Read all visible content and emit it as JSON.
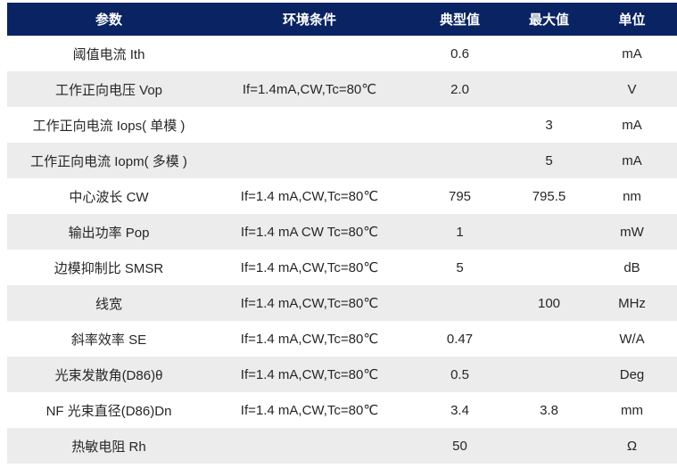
{
  "colors": {
    "page_bg": "#ffffff",
    "header_bg": "#0a2362",
    "header_text": "#ffffff",
    "row_bg": "#ffffff",
    "row_alt_bg": "#ececec",
    "body_text": "#262626"
  },
  "table": {
    "headers": [
      "参数",
      "环境条件",
      "典型值",
      "最大值",
      "单位"
    ],
    "rows": [
      {
        "param": "阈值电流 Ith",
        "condition": "",
        "typical": "0.6",
        "max": "",
        "unit": "mA"
      },
      {
        "param": "工作正向电压 Vop",
        "condition": "If=1.4mA,CW,Tc=80℃",
        "typical": "2.0",
        "max": "",
        "unit": "V"
      },
      {
        "param": "工作正向电流 Iops( 单模 )",
        "condition": "",
        "typical": "",
        "max": "3",
        "unit": "mA"
      },
      {
        "param": "工作正向电流 Iopm( 多模 )",
        "condition": "",
        "typical": "",
        "max": "5",
        "unit": "mA"
      },
      {
        "param": "中心波长 CW",
        "condition": "If=1.4 mA,CW,Tc=80℃",
        "typical": "795",
        "max": "795.5",
        "unit": "nm"
      },
      {
        "param": "输出功率 Pop",
        "condition": "If=1.4 mA CW Tc=80℃",
        "typical": "1",
        "max": "",
        "unit": "mW"
      },
      {
        "param": "边模抑制比 SMSR",
        "condition": "If=1.4 mA,CW,Tc=80℃",
        "typical": "5",
        "max": "",
        "unit": "dB"
      },
      {
        "param": "线宽",
        "condition": "If=1.4 mA,CW,Tc=80℃",
        "typical": "",
        "max": "100",
        "unit": "MHz"
      },
      {
        "param": "斜率效率 SE",
        "condition": "If=1.4 mA,CW,Tc=80℃",
        "typical": "0.47",
        "max": "",
        "unit": "W/A"
      },
      {
        "param": "光束发散角(D86)θ",
        "condition": "If=1.4 mA,CW,Tc=80℃",
        "typical": "0.5",
        "max": "",
        "unit": "Deg"
      },
      {
        "param": "NF 光束直径(D86)Dn",
        "condition": "If=1.4 mA,CW,Tc=80℃",
        "typical": "3.4",
        "max": "3.8",
        "unit": "mm"
      },
      {
        "param": "热敏电阻 Rh",
        "condition": "",
        "typical": "50",
        "max": "",
        "unit": "Ω"
      }
    ]
  }
}
